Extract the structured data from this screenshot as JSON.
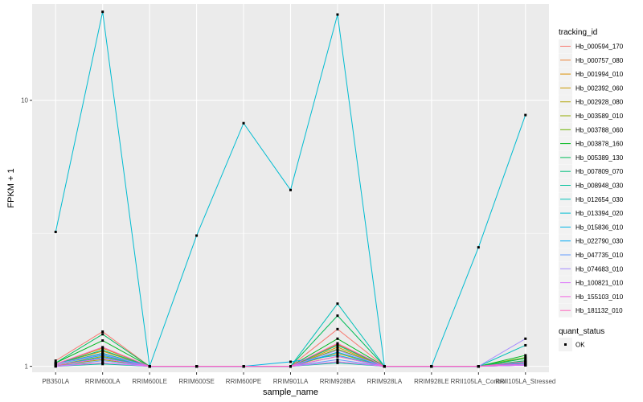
{
  "chart_data": {
    "type": "line",
    "xlabel": "sample_name",
    "ylabel": "FPKM + 1",
    "y_scale": "log10",
    "ylim": [
      0.95,
      23
    ],
    "y_ticks": [
      1,
      10
    ],
    "grid": true,
    "background": "#ebebeb",
    "legend_position": "right",
    "categories": [
      "PB350LA",
      "RRIM600LA",
      "RRIM600LE",
      "RRIM600SE",
      "RRIM600PE",
      "RRIM901LA",
      "RRIM928BA",
      "RRIM928LA",
      "RRIM928LE",
      "RRII105LA_Control",
      "RRII105LA_Stressed"
    ],
    "legend": {
      "title": "tracking_id",
      "entries": [
        "Hb_000594_170",
        "Hb_000757_080",
        "Hb_001994_010",
        "Hb_002392_060",
        "Hb_002928_080",
        "Hb_003589_010",
        "Hb_003788_060",
        "Hb_003878_160",
        "Hb_005389_130",
        "Hb_007809_070",
        "Hb_008948_030",
        "Hb_012654_030",
        "Hb_013394_020",
        "Hb_015836_010",
        "Hb_022790_030",
        "Hb_047735_010",
        "Hb_074683_010",
        "Hb_100821_010",
        "Hb_155103_010",
        "Hb_181132_010"
      ],
      "colors": [
        "#F8766D",
        "#EC8239",
        "#DB8E00",
        "#C79800",
        "#AFA100",
        "#93AA00",
        "#6BB100",
        "#00B81F",
        "#00BC59",
        "#00BF7D",
        "#00C19C",
        "#00C0B8",
        "#00BCD1",
        "#00B4E5",
        "#00A9F4",
        "#619CFF",
        "#A58AFF",
        "#DB72FB",
        "#F364E2",
        "#FF62BC"
      ]
    },
    "shape_legend": {
      "title": "quant_status",
      "entries": [
        "OK"
      ]
    },
    "series": [
      {
        "name": "Hb_000594_170",
        "values": [
          1.05,
          1.35,
          1.0,
          1.0,
          1.0,
          1.0,
          1.38,
          1.0,
          1.0,
          1.0,
          1.02
        ]
      },
      {
        "name": "Hb_000757_080",
        "values": [
          1.01,
          1.03,
          1.0,
          1.0,
          1.0,
          1.0,
          1.04,
          1.0,
          1.0,
          1.0,
          1.01
        ]
      },
      {
        "name": "Hb_001994_010",
        "values": [
          1.02,
          1.14,
          1.0,
          1.0,
          1.0,
          1.0,
          1.18,
          1.0,
          1.0,
          1.0,
          1.04
        ]
      },
      {
        "name": "Hb_002392_060",
        "values": [
          1.02,
          1.17,
          1.0,
          1.0,
          1.0,
          1.0,
          1.21,
          1.0,
          1.0,
          1.0,
          1.05
        ]
      },
      {
        "name": "Hb_002928_080",
        "values": [
          1.01,
          1.09,
          1.0,
          1.0,
          1.0,
          1.0,
          1.12,
          1.0,
          1.0,
          1.0,
          1.03
        ]
      },
      {
        "name": "Hb_003589_010",
        "values": [
          1.01,
          1.06,
          1.0,
          1.0,
          1.0,
          1.0,
          1.09,
          1.0,
          1.0,
          1.0,
          1.02
        ]
      },
      {
        "name": "Hb_003788_060",
        "values": [
          1.02,
          1.12,
          1.0,
          1.0,
          1.0,
          1.0,
          1.16,
          1.0,
          1.0,
          1.0,
          1.08
        ]
      },
      {
        "name": "Hb_003878_160",
        "values": [
          1.03,
          1.25,
          1.0,
          1.0,
          1.0,
          1.0,
          1.27,
          1.0,
          1.0,
          1.0,
          1.1
        ]
      },
      {
        "name": "Hb_005389_130",
        "values": [
          1.03,
          1.32,
          1.0,
          1.0,
          1.0,
          1.0,
          1.55,
          1.0,
          1.0,
          1.0,
          1.07
        ]
      },
      {
        "name": "Hb_007809_070",
        "values": [
          1.02,
          1.15,
          1.0,
          1.0,
          1.0,
          1.0,
          1.2,
          1.0,
          1.0,
          1.0,
          1.05
        ]
      },
      {
        "name": "Hb_008948_030",
        "values": [
          1.0,
          1.02,
          1.0,
          1.0,
          1.0,
          1.0,
          1.03,
          1.0,
          1.0,
          1.0,
          1.01
        ]
      },
      {
        "name": "Hb_012654_030",
        "values": [
          1.02,
          1.12,
          1.0,
          1.0,
          1.0,
          1.0,
          1.72,
          1.0,
          1.0,
          1.0,
          1.2
        ]
      },
      {
        "name": "Hb_013394_020",
        "values": [
          3.2,
          21.5,
          1.0,
          3.1,
          8.2,
          4.6,
          21.0,
          1.0,
          1.0,
          2.8,
          8.8
        ]
      },
      {
        "name": "Hb_015836_010",
        "values": [
          1.01,
          1.08,
          1.0,
          1.0,
          1.0,
          1.04,
          1.1,
          1.0,
          1.0,
          1.0,
          1.02
        ]
      },
      {
        "name": "Hb_022790_030",
        "values": [
          1.02,
          1.1,
          1.0,
          1.0,
          1.0,
          1.0,
          1.13,
          1.0,
          1.0,
          1.0,
          1.03
        ]
      },
      {
        "name": "Hb_047735_010",
        "values": [
          1.0,
          1.05,
          1.0,
          1.0,
          1.0,
          1.0,
          1.06,
          1.0,
          1.0,
          1.0,
          1.01
        ]
      },
      {
        "name": "Hb_074683_010",
        "values": [
          1.02,
          1.11,
          1.0,
          1.0,
          1.0,
          1.0,
          1.15,
          1.0,
          1.0,
          1.0,
          1.27
        ]
      },
      {
        "name": "Hb_100821_010",
        "values": [
          1.0,
          1.03,
          1.0,
          1.0,
          1.0,
          1.0,
          1.04,
          1.0,
          1.0,
          1.0,
          1.01
        ]
      },
      {
        "name": "Hb_155103_010",
        "values": [
          1.01,
          1.07,
          1.0,
          1.0,
          1.0,
          1.0,
          1.09,
          1.0,
          1.0,
          1.0,
          1.02
        ]
      },
      {
        "name": "Hb_181132_010",
        "values": [
          1.02,
          1.18,
          1.0,
          1.0,
          1.0,
          1.0,
          1.22,
          1.0,
          1.0,
          1.0,
          1.04
        ]
      }
    ]
  }
}
